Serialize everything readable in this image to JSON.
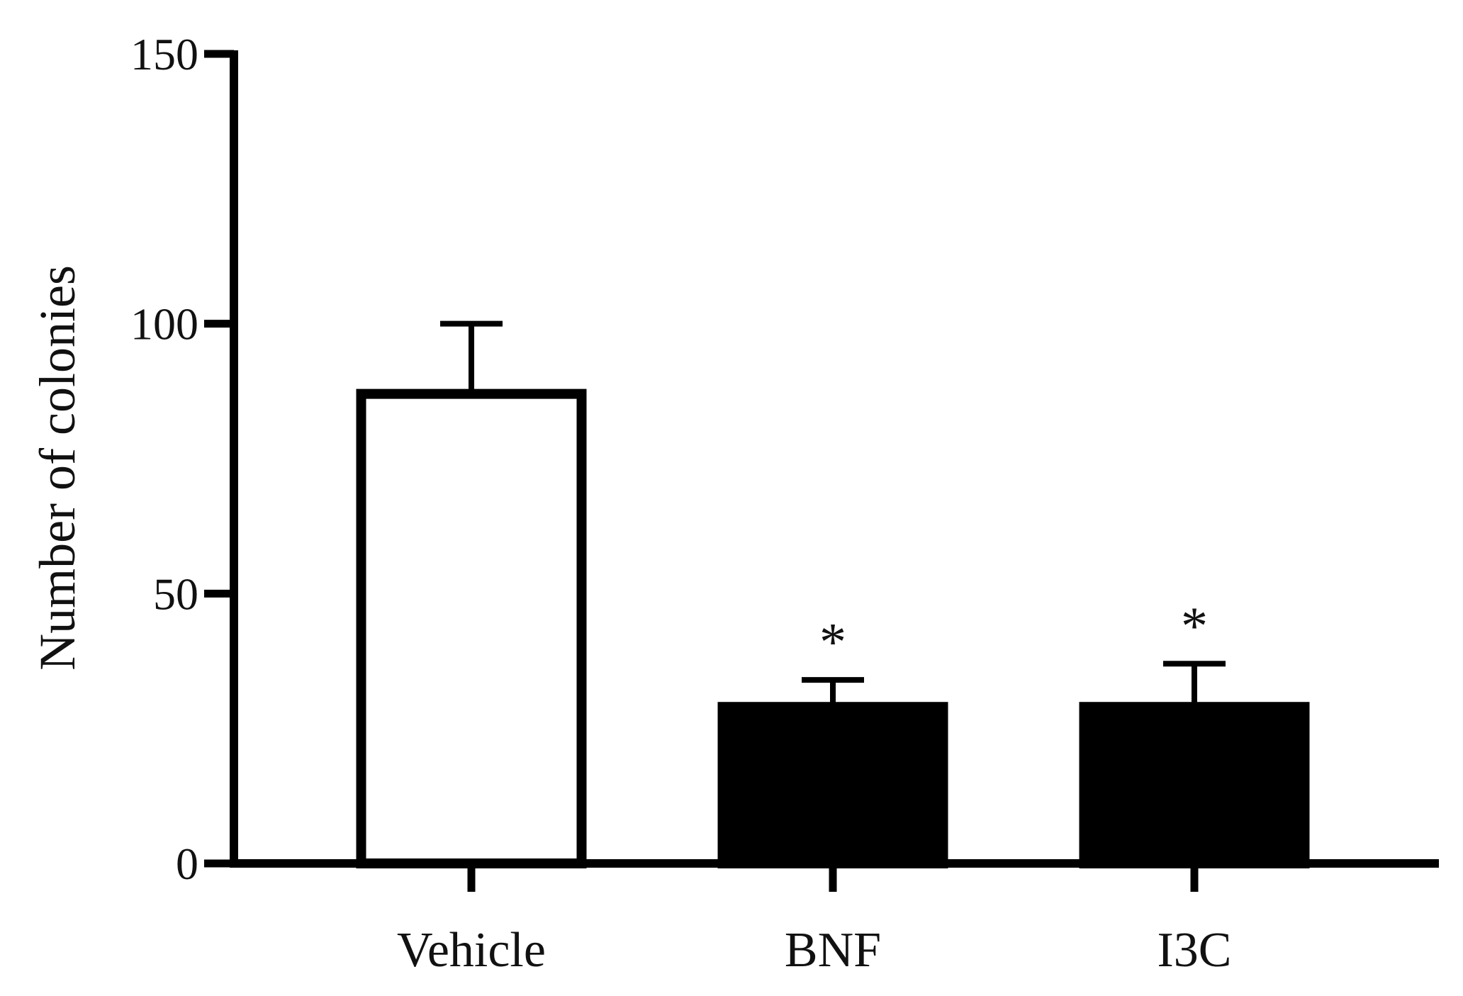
{
  "chart_data": {
    "type": "bar",
    "title": "",
    "xlabel": "",
    "ylabel": "Number of colonies",
    "ylim": [
      0,
      150
    ],
    "yticks": [
      0,
      50,
      100,
      150
    ],
    "categories": [
      "Vehicle",
      "BNF",
      "I3C"
    ],
    "values": [
      87,
      29,
      29
    ],
    "errors": [
      13,
      5,
      8
    ],
    "annotations": [
      "",
      "*",
      "*"
    ],
    "bar_colors": [
      "#ffffff",
      "#000000",
      "#000000"
    ],
    "grid": false,
    "legend": "none"
  }
}
